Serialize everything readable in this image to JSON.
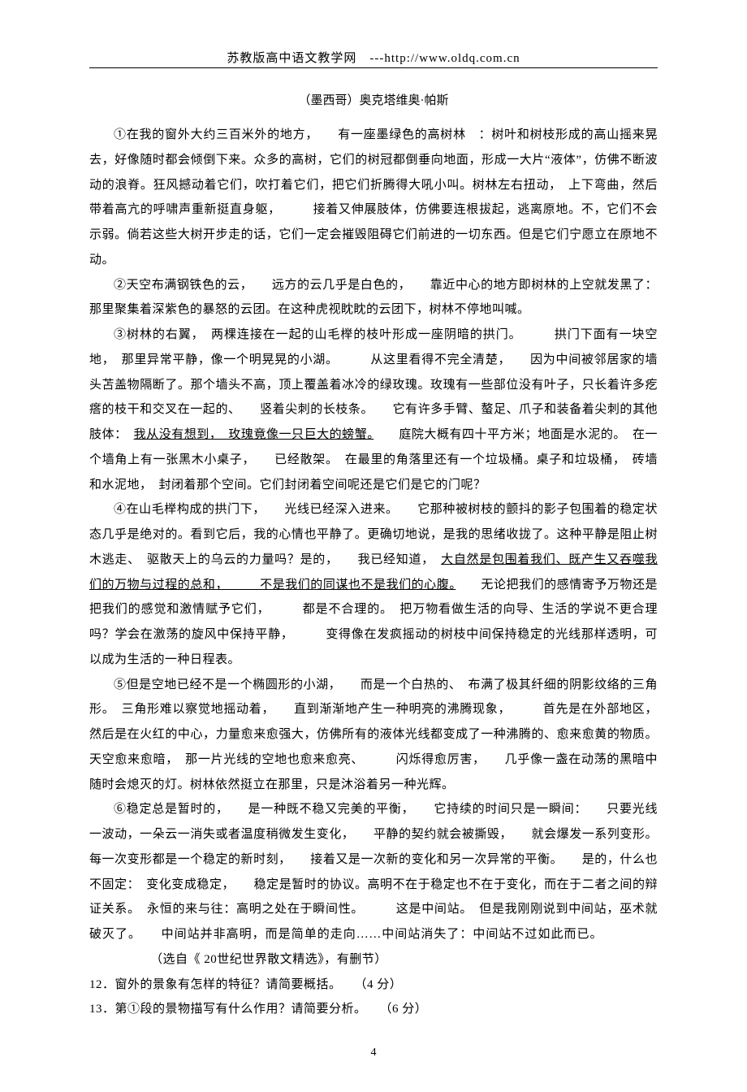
{
  "header": "苏教版高中语文教学网　---http://www.oldq.com.cn",
  "author": "（墨西哥）奥克塔维奥·帕斯",
  "paragraphs": {
    "p1_a": "①在我的窗外大约三百米外的地方，　　有一座墨绿色的高树林　：树叶和树枝形成的高山摇来晃去，好像随时都会倾倒下来。众多的高树，它们的树冠都倒垂向地面，形成一大片“液体”，仿佛不断波动的浪脊。狂风撼动着它们，吹打着它们，把它们折腾得大吼小叫。树林左右扭动，　上下弯曲，然后带着高亢的呼啸声重新挺直身躯，　　　接着又伸展肢体，仿佛要连根拔起，逃离原地。不，它们不会示弱。倘若这些大树开步走的话，它们一定会摧毁阻碍它们前进的一切东西。但是它们宁愿立在原地不动。",
    "p2": "②天空布满钢铁色的云，　　远方的云几乎是白色的，　　靠近中心的地方即树林的上空就发黑了：那里聚集着深紫色的暴怒的云团。在这种虎视眈眈的云团下，树林不停地叫喊。",
    "p3_a": "③树林的右翼，　两棵连接在一起的山毛榉的枝叶形成一座阴暗的拱门。　　　拱门下面有一块空地，　那里异常平静，像一个明晃晃的小湖。　　　从这里看得不完全清楚，　　因为中间被邻居家的墙头苫盖物隔断了。那个墙头不高，顶上覆盖着冰冷的绿玫瑰。玫瑰有一些部位没有叶子，只长着许多疙瘩的枝干和交叉在一起的、　　竖着尖刺的长枝条。　　它有许多手臂、螯足、爪子和装备着尖刺的其他肢体：　",
    "p3_u": "我从没有想到，　玫瑰竟像一只巨大的螃蟹。",
    "p3_b": "　　庭院大概有四十平方米；地面是水泥的。　在一个墙角上有一张黑木小桌子，　　已经散架。　在最里的角落里还有一个垃圾桶。桌子和垃圾桶，　砖墙和水泥地，　封闭着那个空间。它们封闭着空间呢还是它们是它的门呢？",
    "p4_a": "④在山毛榉构成的拱门下，　　光线已经深入进来。　　它那种被树枝的颤抖的影子包围着的稳定状态几乎是绝对的。看到它后，我的心情也平静了。更确切地说，是我的思绪收拢了。这种平静是阻止树木逃走、　驱散天上的乌云的力量吗？是的，　　我已经知道，　",
    "p4_u": "大自然是包围着我们、既产生又吞噬我们的万物与过程的总和，　　　不是我们的同谋也不是我们的心腹。",
    "p4_b": "　　无论把我们的感情寄予万物还是把我们的感觉和激情赋予它们，　　　都是不合理的。　把万物看做生活的向导、生活的学说不更合理吗？学会在激荡的旋风中保持平静，　　　变得像在发疯摇动的树枝中间保持稳定的光线那样透明，可以成为生活的一种日程表。",
    "p5": "⑤但是空地已经不是一个椭圆形的小湖，　　而是一个白热的、　布满了极其纤细的阴影纹络的三角形。　三角形难以察觉地摇动着，　　直到渐渐地产生一种明亮的沸腾现象，　　　首先是在外部地区，然后是在火红的中心，力量愈来愈强大，仿佛所有的液体光线都变成了一种沸腾的、愈来愈黄的物质。天空愈来愈暗，　那一片光线的空地也愈来愈亮、　　　闪烁得愈厉害，　　几乎像一盏在动荡的黑暗中随时会熄灭的灯。树林依然挺立在那里，只是沐浴着另一种光辉。",
    "p6_a": "⑥稳定总是暂时的，　　是一种既不稳又完美的平衡，　　它持续的时间只是一瞬间：　　只要光线一波动，一朵云一消失或者温度稍微发生变化，　　平静的契约就会被撕毁，　　就会爆发一系列变形。每一次变形都是一个稳定的新时刻，　　接着又是一次新的变化和另一次异常的平衡。　　是的，什么也不固定：　变化变成稳定，　　稳定是暂时的协议。高明不在于稳定也不在于变化，而在于二者之间的辩证关系。　永恒的来与往：高明之处在于瞬间性。　　　这是中间站。　但是我刚刚说到中间站，巫术就破灭了。　　中间站并非高明，而是简单的走向……中间站消失了：中间站不过如此而已。",
    "p6_src": "（选自《 20世纪世界散文精选》，有删节）"
  },
  "questions": {
    "q12": "12．窗外的景象有怎样的特征？请简要概括。　　（4 分）",
    "q13": "13．第①段的景物描写有什么作用？请简要分析。　　（6 分）"
  },
  "pagenum": "4"
}
